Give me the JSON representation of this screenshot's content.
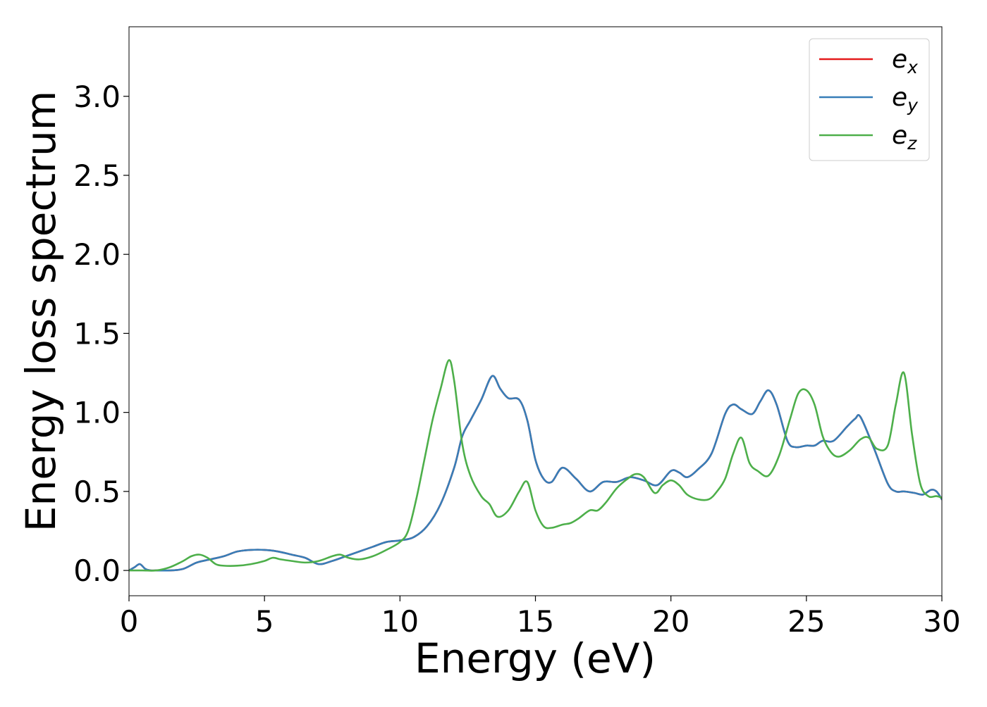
{
  "chart_data": {
    "type": "line",
    "xlabel": "Energy (eV)",
    "ylabel": "Energy loss spectrum",
    "xlim": [
      0,
      30
    ],
    "ylim": [
      -0.16,
      3.44
    ],
    "xticks": [
      0,
      5,
      10,
      15,
      20,
      25,
      30
    ],
    "xtick_labels": [
      "0",
      "5",
      "10",
      "15",
      "20",
      "25",
      "30"
    ],
    "yticks": [
      0.0,
      0.5,
      1.0,
      1.5,
      2.0,
      2.5,
      3.0
    ],
    "ytick_labels": [
      "0.0",
      "0.5",
      "1.0",
      "1.5",
      "2.0",
      "2.5",
      "3.0"
    ],
    "grid": false,
    "legend_position": "top-right",
    "series": [
      {
        "name": "e_x",
        "name_base": "e",
        "name_sub": "x",
        "color": "#e41a1c",
        "x": [
          0,
          0.2,
          0.4,
          0.6,
          0.8,
          1.0,
          1.5,
          2.0,
          2.5,
          3.0,
          3.5,
          4.0,
          4.5,
          5.0,
          5.5,
          6.0,
          6.5,
          7.0,
          7.5,
          8.0,
          8.5,
          9.0,
          9.5,
          10.0,
          10.5,
          11.0,
          11.5,
          12.0,
          12.3,
          12.6,
          13.0,
          13.4,
          13.7,
          14.0,
          14.4,
          14.7,
          15.0,
          15.3,
          15.6,
          16.0,
          16.5,
          17.0,
          17.5,
          18.0,
          18.5,
          19.0,
          19.5,
          20.0,
          20.3,
          20.6,
          21.0,
          21.5,
          22.0,
          22.3,
          22.6,
          23.0,
          23.3,
          23.6,
          23.9,
          24.3,
          24.6,
          25.0,
          25.3,
          25.6,
          26.0,
          26.5,
          26.8,
          27.0,
          27.5,
          28.0,
          28.3,
          28.6,
          29.0,
          29.3,
          29.6,
          29.8,
          30.0
        ],
        "y": [
          0.0,
          0.02,
          0.04,
          0.01,
          0.0,
          0.0,
          0.0,
          0.01,
          0.05,
          0.07,
          0.09,
          0.12,
          0.13,
          0.13,
          0.12,
          0.1,
          0.08,
          0.04,
          0.06,
          0.09,
          0.12,
          0.15,
          0.18,
          0.19,
          0.21,
          0.28,
          0.42,
          0.65,
          0.85,
          0.95,
          1.08,
          1.23,
          1.15,
          1.09,
          1.08,
          0.95,
          0.7,
          0.58,
          0.56,
          0.65,
          0.58,
          0.5,
          0.56,
          0.56,
          0.59,
          0.57,
          0.54,
          0.63,
          0.62,
          0.59,
          0.64,
          0.74,
          0.99,
          1.05,
          1.02,
          0.99,
          1.07,
          1.14,
          1.05,
          0.82,
          0.78,
          0.79,
          0.79,
          0.82,
          0.82,
          0.91,
          0.96,
          0.97,
          0.77,
          0.55,
          0.5,
          0.5,
          0.49,
          0.48,
          0.51,
          0.5,
          0.45
        ]
      },
      {
        "name": "e_y",
        "name_base": "e",
        "name_sub": "y",
        "color": "#377eb8",
        "x": [
          0,
          0.2,
          0.4,
          0.6,
          0.8,
          1.0,
          1.5,
          2.0,
          2.5,
          3.0,
          3.5,
          4.0,
          4.5,
          5.0,
          5.5,
          6.0,
          6.5,
          7.0,
          7.5,
          8.0,
          8.5,
          9.0,
          9.5,
          10.0,
          10.5,
          11.0,
          11.5,
          12.0,
          12.3,
          12.6,
          13.0,
          13.4,
          13.7,
          14.0,
          14.4,
          14.7,
          15.0,
          15.3,
          15.6,
          16.0,
          16.5,
          17.0,
          17.5,
          18.0,
          18.5,
          19.0,
          19.5,
          20.0,
          20.3,
          20.6,
          21.0,
          21.5,
          22.0,
          22.3,
          22.6,
          23.0,
          23.3,
          23.6,
          23.9,
          24.3,
          24.6,
          25.0,
          25.3,
          25.6,
          26.0,
          26.5,
          26.8,
          27.0,
          27.5,
          28.0,
          28.3,
          28.6,
          29.0,
          29.3,
          29.6,
          29.8,
          30.0
        ],
        "y": [
          0.0,
          0.02,
          0.04,
          0.01,
          0.0,
          0.0,
          0.0,
          0.01,
          0.05,
          0.07,
          0.09,
          0.12,
          0.13,
          0.13,
          0.12,
          0.1,
          0.08,
          0.04,
          0.06,
          0.09,
          0.12,
          0.15,
          0.18,
          0.19,
          0.21,
          0.28,
          0.42,
          0.65,
          0.85,
          0.95,
          1.08,
          1.23,
          1.15,
          1.09,
          1.08,
          0.95,
          0.7,
          0.58,
          0.56,
          0.65,
          0.58,
          0.5,
          0.56,
          0.56,
          0.59,
          0.57,
          0.54,
          0.63,
          0.62,
          0.59,
          0.64,
          0.74,
          0.99,
          1.05,
          1.02,
          0.99,
          1.07,
          1.14,
          1.05,
          0.82,
          0.78,
          0.79,
          0.79,
          0.82,
          0.82,
          0.91,
          0.96,
          0.97,
          0.77,
          0.55,
          0.5,
          0.5,
          0.49,
          0.48,
          0.51,
          0.5,
          0.45
        ]
      },
      {
        "name": "e_z",
        "name_base": "e",
        "name_sub": "z",
        "color": "#4daf4a",
        "x": [
          0,
          0.5,
          1.0,
          1.5,
          2.0,
          2.3,
          2.6,
          2.9,
          3.2,
          3.5,
          4.0,
          4.5,
          5.0,
          5.3,
          5.6,
          6.0,
          6.5,
          7.0,
          7.5,
          7.8,
          8.1,
          8.5,
          9.0,
          9.5,
          10.0,
          10.3,
          10.6,
          10.9,
          11.2,
          11.5,
          11.8,
          12.0,
          12.3,
          12.6,
          13.0,
          13.3,
          13.6,
          14.0,
          14.4,
          14.7,
          15.0,
          15.3,
          15.6,
          16.0,
          16.3,
          16.6,
          17.0,
          17.3,
          17.6,
          18.0,
          18.4,
          18.7,
          19.0,
          19.4,
          19.7,
          20.0,
          20.3,
          20.6,
          21.0,
          21.4,
          21.7,
          22.0,
          22.3,
          22.6,
          22.9,
          23.2,
          23.6,
          24.0,
          24.4,
          24.7,
          25.0,
          25.3,
          25.6,
          25.9,
          26.2,
          26.6,
          27.0,
          27.3,
          27.6,
          28.0,
          28.3,
          28.6,
          28.9,
          29.2,
          29.5,
          29.8,
          30.0
        ],
        "y": [
          0.0,
          0.0,
          0.0,
          0.02,
          0.06,
          0.09,
          0.1,
          0.08,
          0.04,
          0.03,
          0.03,
          0.04,
          0.06,
          0.08,
          0.07,
          0.06,
          0.05,
          0.06,
          0.09,
          0.1,
          0.08,
          0.07,
          0.09,
          0.13,
          0.18,
          0.25,
          0.45,
          0.7,
          0.95,
          1.15,
          1.33,
          1.2,
          0.8,
          0.6,
          0.47,
          0.42,
          0.34,
          0.38,
          0.5,
          0.56,
          0.38,
          0.28,
          0.27,
          0.29,
          0.3,
          0.33,
          0.38,
          0.38,
          0.43,
          0.52,
          0.58,
          0.61,
          0.59,
          0.49,
          0.54,
          0.57,
          0.54,
          0.48,
          0.45,
          0.45,
          0.5,
          0.58,
          0.74,
          0.84,
          0.68,
          0.63,
          0.6,
          0.73,
          0.96,
          1.12,
          1.14,
          1.05,
          0.85,
          0.75,
          0.72,
          0.76,
          0.83,
          0.84,
          0.77,
          0.79,
          1.05,
          1.25,
          0.86,
          0.55,
          0.47,
          0.47,
          0.46
        ]
      }
    ]
  }
}
